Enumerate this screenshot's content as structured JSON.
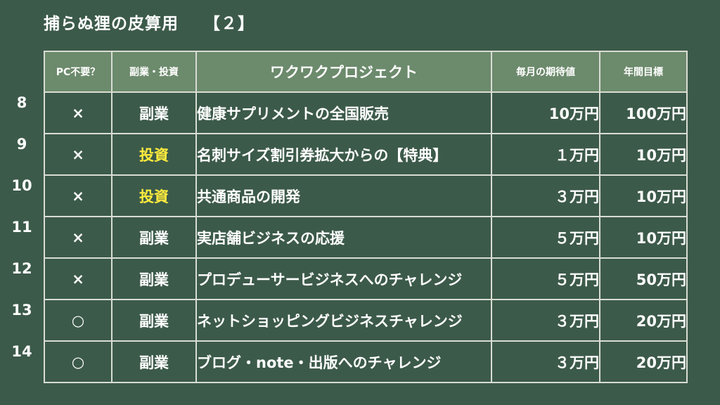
{
  "title": {
    "text": "捕らぬ狸の皮算用",
    "number": "【２】"
  },
  "headers": [
    "PC不要？",
    "副業・投資",
    "ワクワクプロジェクト",
    "毎月の期待値",
    "年間目標"
  ],
  "rows": [
    {
      "num": "8",
      "pc": "×",
      "type": "副業",
      "invest": false,
      "project": "健康サプリメントの全国販売",
      "monthly": "10万円",
      "yearly": "100万円"
    },
    {
      "num": "9",
      "pc": "×",
      "type": "投資",
      "invest": true,
      "project": "名刺サイズ割引券拡大からの【特典】",
      "monthly": "１万円",
      "yearly": "10万円"
    },
    {
      "num": "10",
      "pc": "×",
      "type": "投資",
      "invest": true,
      "project": "共通商品の開発",
      "monthly": "３万円",
      "yearly": "10万円"
    },
    {
      "num": "11",
      "pc": "×",
      "type": "副業",
      "invest": false,
      "project": "実店舗ビジネスの応援",
      "monthly": "５万円",
      "yearly": "10万円"
    },
    {
      "num": "12",
      "pc": "×",
      "type": "副業",
      "invest": false,
      "project": "プロデューサービジネスへのチャレンジ",
      "monthly": "５万円",
      "yearly": "50万円"
    },
    {
      "num": "13",
      "pc": "○",
      "type": "副業",
      "invest": false,
      "project": "ネットショッピングビジネスチャレンジ",
      "monthly": "３万円",
      "yearly": "20万円"
    },
    {
      "num": "14",
      "pc": "○",
      "type": "副業",
      "invest": false,
      "project": "ブログ・note・出版へのチャレンジ",
      "monthly": "３万円",
      "yearly": "20万円"
    }
  ],
  "colors": {
    "board": "#3c5a4a",
    "header": "#6c8a6c",
    "invest": "#ffec3d",
    "line": "#d9ddd3"
  }
}
